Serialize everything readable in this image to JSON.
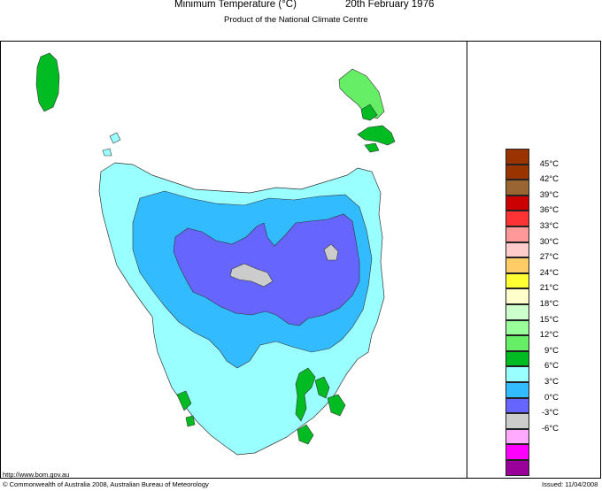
{
  "header": {
    "title_part1": "Minimum Temperature (°C)",
    "title_part2": "20th February 1976",
    "subtitle": "Product of the National Climate Centre"
  },
  "legend": {
    "items": [
      {
        "label": "45°C",
        "color": "#993300"
      },
      {
        "label": "42°C",
        "color": "#996633"
      },
      {
        "label": "39°C",
        "color": "#cc0000"
      },
      {
        "label": "36°C",
        "color": "#ff3333"
      },
      {
        "label": "33°C",
        "color": "#ff9999"
      },
      {
        "label": "30°C",
        "color": "#ffcccc"
      },
      {
        "label": "27°C",
        "color": "#ffcc66"
      },
      {
        "label": "24°C",
        "color": "#ffff33"
      },
      {
        "label": "21°C",
        "color": "#ffffcc"
      },
      {
        "label": "18°C",
        "color": "#ccffcc"
      },
      {
        "label": "15°C",
        "color": "#99ff99"
      },
      {
        "label": "12°C",
        "color": "#66ee66"
      },
      {
        "label": "9°C",
        "color": "#00bb22"
      },
      {
        "label": "6°C",
        "color": "#99ffff"
      },
      {
        "label": "3°C",
        "color": "#33bbff"
      },
      {
        "label": "0°C",
        "color": "#6666ff"
      },
      {
        "label": "-3°C",
        "color": "#cccccc"
      },
      {
        "label": "-6°C",
        "color": "#ffaaff"
      }
    ],
    "extra_swatches": [
      "#ff00ff",
      "#990099"
    ]
  },
  "footer": {
    "url": "http://www.bom.gov.au",
    "copyright": "© Commonwealth of Australia 2008, Australian Bureau of Meteorology",
    "issued": "Issued: 11/04/2008"
  },
  "colors": {
    "cyan_band": "#99ffff",
    "blue_band": "#33bbff",
    "purple_band": "#6666ff",
    "grey_band": "#cccccc",
    "green_band": "#00bb22",
    "light_green_band": "#66ee66"
  }
}
